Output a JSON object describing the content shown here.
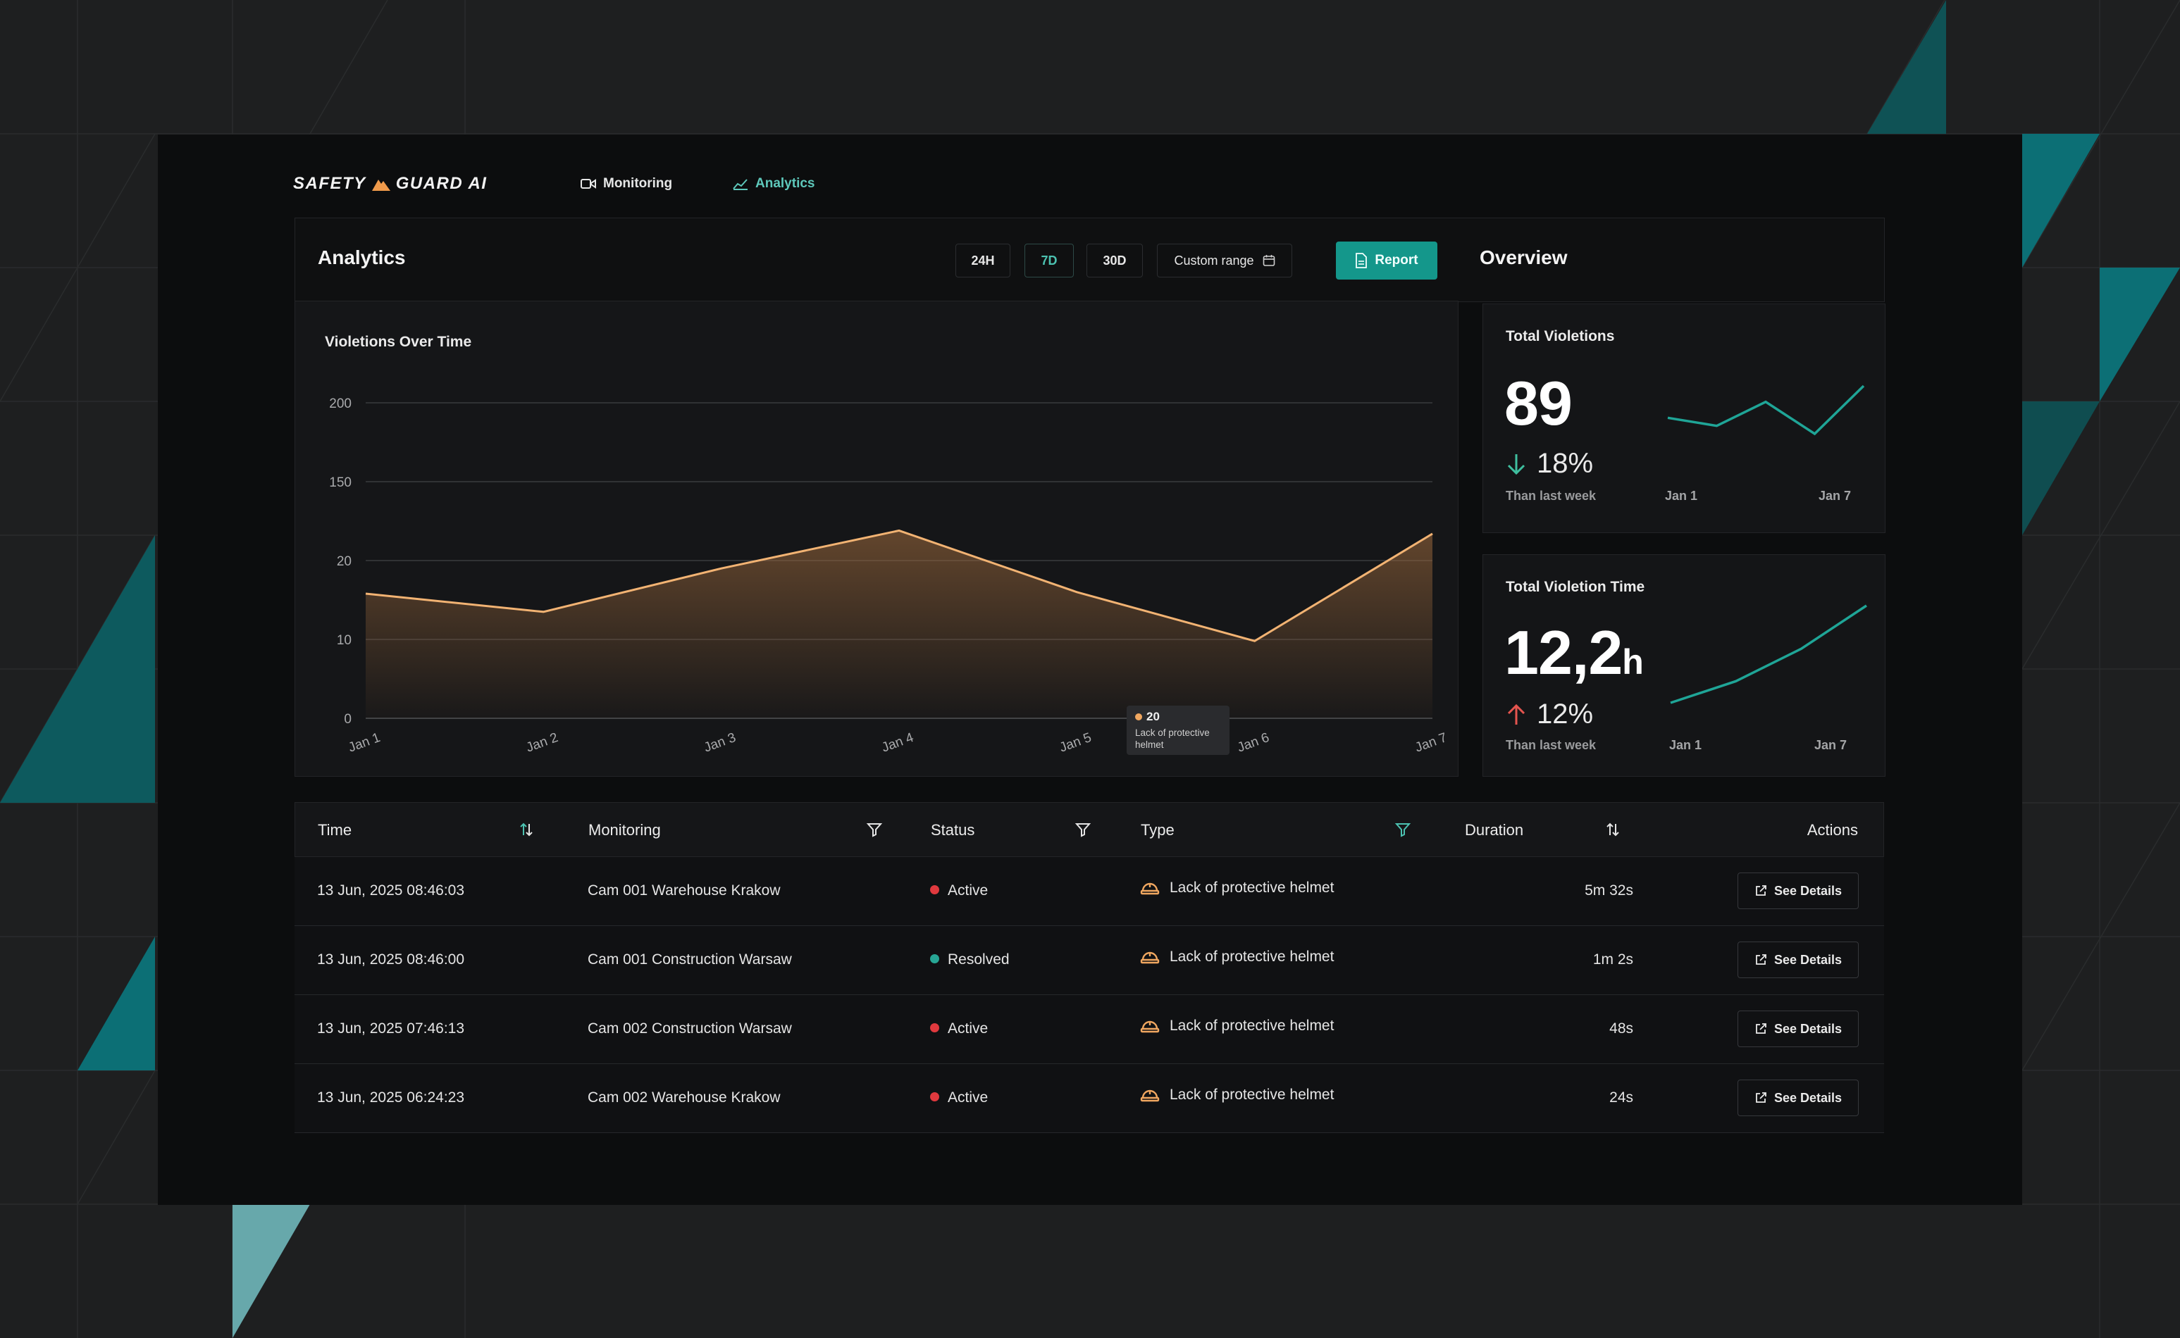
{
  "brand": {
    "name_left": "SAFETY",
    "name_right": "GUARD AI",
    "accent": "#f09a4b"
  },
  "nav": [
    {
      "label": "Monitoring",
      "icon": "camera-icon",
      "active": false
    },
    {
      "label": "Analytics",
      "icon": "chart-icon",
      "active": true
    }
  ],
  "analytics": {
    "title": "Analytics",
    "ranges": [
      "24H",
      "7D",
      "30D"
    ],
    "selected_range": "7D",
    "custom_range_label": "Custom range",
    "report_label": "Report"
  },
  "overview": {
    "title": "Overview",
    "total_violations": {
      "title": "Total Violetions",
      "value": "89",
      "change": "18%",
      "direction": "down",
      "caption": "Than last week",
      "spark_start": "Jan 1",
      "spark_end": "Jan 7",
      "spark": [
        5,
        4,
        7,
        3,
        9
      ]
    },
    "total_time": {
      "title": "Total Violetion Time",
      "value": "12,2",
      "unit": "h",
      "change": "12%",
      "direction": "up",
      "caption": "Than last week",
      "spark_start": "Jan 1",
      "spark_end": "Jan 7",
      "spark": [
        1,
        3,
        6,
        10
      ]
    }
  },
  "chart_data": {
    "type": "area",
    "title": "Violetions Over Time",
    "categories": [
      "Jan 1",
      "Jan 2",
      "Jan 3",
      "Jan 4",
      "Jan 5",
      "Jan 6",
      "Jan 7"
    ],
    "y_ticks": [
      "0",
      "10",
      "20",
      "150",
      "200"
    ],
    "series": [
      {
        "values": [
          15.8,
          13.5,
          19,
          23.8,
          16,
          9.8,
          23.4
        ]
      }
    ],
    "tooltip": {
      "value": "20",
      "label": "Lack of protective helmet"
    },
    "grid": true,
    "colors": {
      "line": "#f2b373",
      "grid": "#3a3b3e"
    }
  },
  "table": {
    "headers": {
      "time": "Time",
      "monitoring": "Monitoring",
      "status": "Status",
      "type": "Type",
      "duration": "Duration",
      "actions": "Actions"
    },
    "rows": [
      {
        "time": "13 Jun, 2025 08:46:03",
        "monitoring": "Cam 001 Warehouse Krakow",
        "status": "Active",
        "type": "Lack of protective helmet",
        "duration": "5m 32s",
        "action": "See Details"
      },
      {
        "time": "13 Jun, 2025 08:46:00",
        "monitoring": "Cam 001 Construction Warsaw",
        "status": "Resolved",
        "type": "Lack of protective helmet",
        "duration": "1m 2s",
        "action": "See Details"
      },
      {
        "time": "13 Jun, 2025 07:46:13",
        "monitoring": "Cam 002 Construction Warsaw",
        "status": "Active",
        "type": "Lack of protective helmet",
        "duration": "48s",
        "action": "See Details"
      },
      {
        "time": "13 Jun, 2025 06:24:23",
        "monitoring": "Cam 002 Warehouse Krakow",
        "status": "Active",
        "type": "Lack of protective helmet",
        "duration": "24s",
        "action": "See Details"
      }
    ],
    "status_colors": {
      "Active": "#e0393e",
      "Resolved": "#27a695"
    }
  },
  "colors": {
    "accent": "#14978b",
    "teal": "#4cc2b1",
    "up": "#e5554f"
  }
}
